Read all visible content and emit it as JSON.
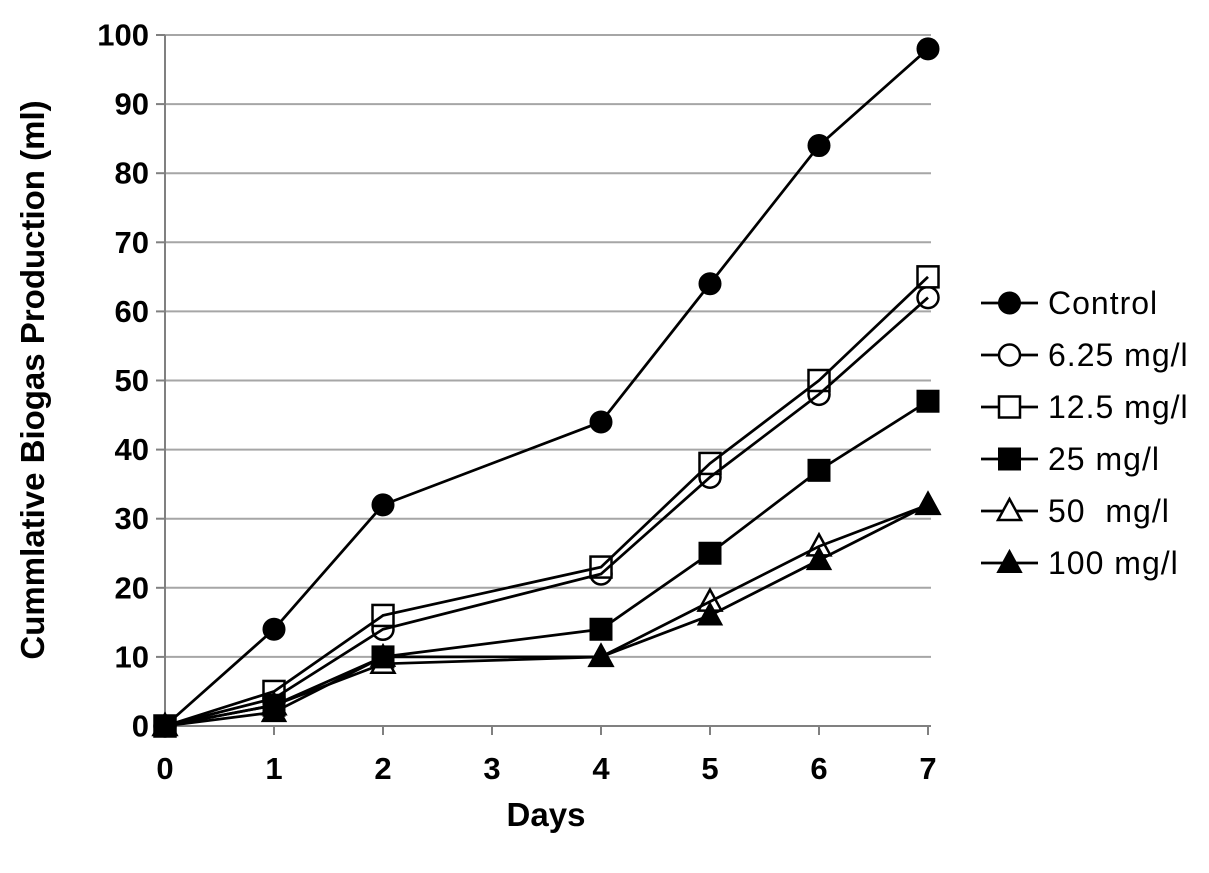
{
  "page": {
    "background": "#ffffff"
  },
  "chart_data": {
    "type": "line",
    "title": "",
    "xlabel": "Days",
    "ylabel": "Cummlative Biogas Production (ml)",
    "x": [
      0,
      1,
      2,
      4,
      5,
      6,
      7
    ],
    "xlim": [
      0,
      7
    ],
    "ylim": [
      0,
      100
    ],
    "xticks": [
      0,
      1,
      2,
      3,
      4,
      5,
      6,
      7
    ],
    "yticks": [
      0,
      10,
      20,
      30,
      40,
      50,
      60,
      70,
      80,
      90,
      100
    ],
    "grid": "horizontal",
    "legend_position": "right-outside",
    "series": [
      {
        "name": "Control",
        "marker": "circle",
        "marker_fill": "filled",
        "color": "#000000",
        "values": [
          0,
          14,
          32,
          44,
          64,
          84,
          98
        ]
      },
      {
        "name": "6.25 mg/l",
        "marker": "circle",
        "marker_fill": "open",
        "color": "#000000",
        "values": [
          0,
          4,
          14,
          22,
          36,
          48,
          62
        ]
      },
      {
        "name": "12.5 mg/l",
        "marker": "square",
        "marker_fill": "open",
        "color": "#000000",
        "values": [
          0,
          5,
          16,
          23,
          38,
          50,
          65
        ]
      },
      {
        "name": "25 mg/l",
        "marker": "square",
        "marker_fill": "filled",
        "color": "#000000",
        "values": [
          0,
          3,
          10,
          14,
          25,
          37,
          47
        ]
      },
      {
        "name": "50  mg/l",
        "marker": "triangle",
        "marker_fill": "open",
        "color": "#000000",
        "values": [
          0,
          3,
          9,
          10,
          18,
          26,
          32
        ]
      },
      {
        "name": "100 mg/l",
        "marker": "triangle",
        "marker_fill": "filled",
        "color": "#000000",
        "values": [
          0,
          2,
          10,
          10,
          16,
          24,
          32
        ]
      }
    ],
    "colors": {
      "gridline": "#a6a6a6",
      "axis": "#808080",
      "series": "#000000",
      "text": "#000000",
      "marker_open_fill": "#ffffff"
    }
  }
}
